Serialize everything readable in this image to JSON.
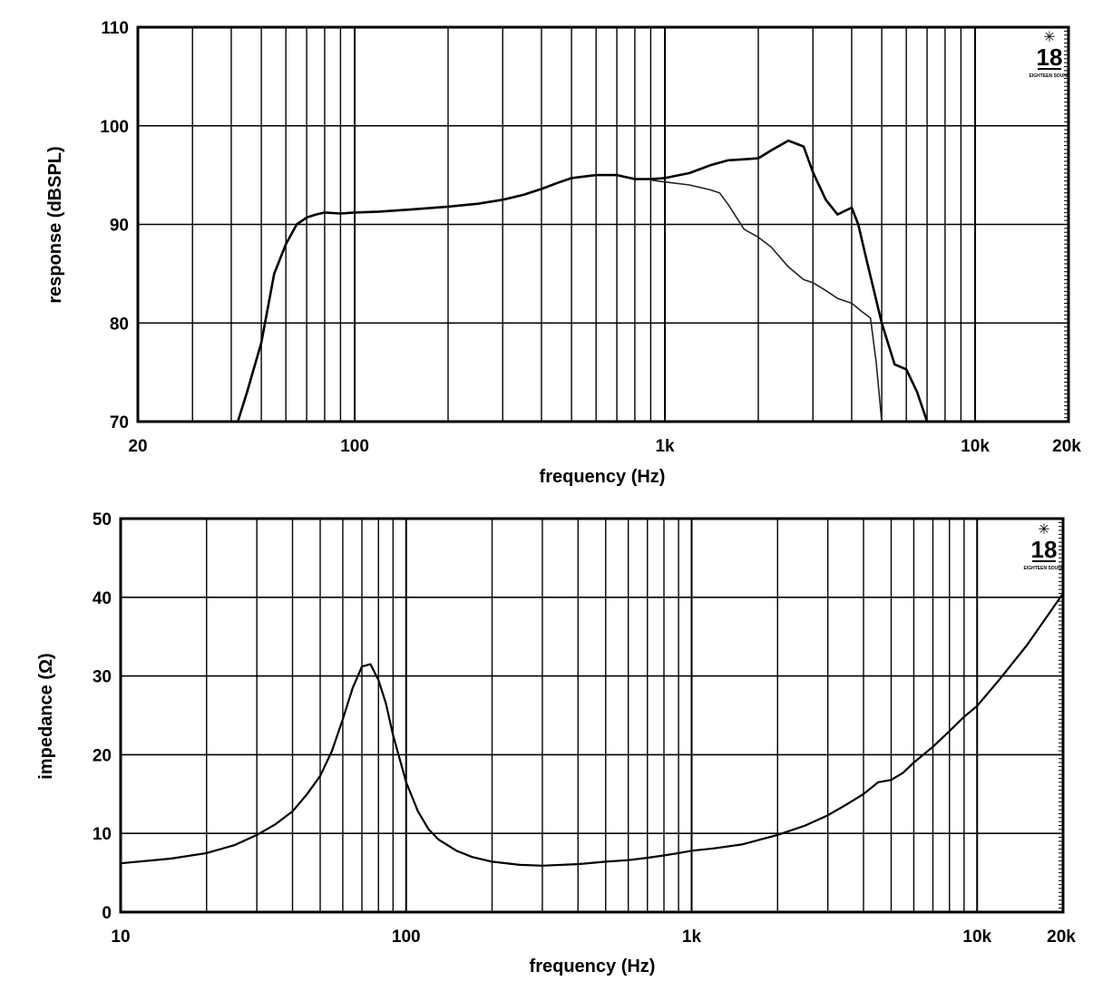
{
  "chart_data": [
    {
      "type": "line",
      "id": "response",
      "xlabel": "frequency (Hz)",
      "ylabel": "response (dBSPL)",
      "xscale": "log",
      "xlim": [
        20,
        20000
      ],
      "ylim": [
        70,
        110
      ],
      "xticks": [
        {
          "value": 20,
          "label": "20"
        },
        {
          "value": 100,
          "label": "100"
        },
        {
          "value": 1000,
          "label": "1k"
        },
        {
          "value": 10000,
          "label": "10k"
        },
        {
          "value": 20000,
          "label": "20k"
        }
      ],
      "yticks": [
        {
          "value": 70,
          "label": "70"
        },
        {
          "value": 80,
          "label": "80"
        },
        {
          "value": 90,
          "label": "90"
        },
        {
          "value": 100,
          "label": "100"
        },
        {
          "value": 110,
          "label": "110"
        }
      ],
      "grid": true,
      "brand": {
        "number": "18",
        "text": "EIGHTEEN SOUND"
      },
      "series": [
        {
          "stroke_width": 2.6,
          "color": "#000000",
          "x": [
            42,
            45,
            50,
            55,
            60,
            65,
            70,
            75,
            80,
            90,
            100,
            120,
            150,
            200,
            250,
            300,
            350,
            400,
            450,
            500,
            600,
            700,
            800,
            900,
            1000,
            1200,
            1400,
            1600,
            1800,
            2000,
            2200,
            2500,
            2800,
            3000,
            3300,
            3600,
            4000,
            4200,
            4500,
            5000,
            5500,
            6000,
            6500,
            7000
          ],
          "y": [
            70,
            73,
            78,
            85,
            88,
            90,
            90.7,
            91,
            91.2,
            91.1,
            91.2,
            91.3,
            91.5,
            91.8,
            92.1,
            92.5,
            93,
            93.6,
            94.2,
            94.7,
            95,
            95,
            94.6,
            94.6,
            94.7,
            95.2,
            96,
            96.5,
            96.6,
            96.7,
            97.5,
            98.5,
            97.9,
            95.3,
            92.5,
            91,
            91.7,
            90,
            86,
            80,
            75.8,
            75.3,
            73,
            70
          ]
        },
        {
          "stroke_width": 1.6,
          "color": "#222222",
          "x": [
            900,
            1000,
            1200,
            1400,
            1500,
            1600,
            1800,
            2000,
            2200,
            2500,
            2800,
            3000,
            3300,
            3600,
            4000,
            4300,
            4600,
            4800,
            5000
          ],
          "y": [
            94.5,
            94.3,
            94,
            93.5,
            93.2,
            92,
            89.5,
            88.7,
            87.7,
            85.7,
            84.4,
            84.1,
            83.3,
            82.5,
            82,
            81.2,
            80.5,
            76,
            70
          ]
        }
      ]
    },
    {
      "type": "line",
      "id": "impedance",
      "xlabel": "frequency (Hz)",
      "ylabel": "impedance (Ω)",
      "xscale": "log",
      "xlim": [
        10,
        20000
      ],
      "ylim": [
        0,
        50
      ],
      "xticks": [
        {
          "value": 10,
          "label": "10"
        },
        {
          "value": 100,
          "label": "100"
        },
        {
          "value": 1000,
          "label": "1k"
        },
        {
          "value": 10000,
          "label": "10k"
        },
        {
          "value": 20000,
          "label": "20k"
        }
      ],
      "yticks": [
        {
          "value": 0,
          "label": "0"
        },
        {
          "value": 10,
          "label": "10"
        },
        {
          "value": 20,
          "label": "20"
        },
        {
          "value": 30,
          "label": "30"
        },
        {
          "value": 40,
          "label": "40"
        },
        {
          "value": 50,
          "label": "50"
        }
      ],
      "grid": true,
      "brand": {
        "number": "18",
        "text": "EIGHTEEN SOUND"
      },
      "series": [
        {
          "stroke_width": 2.2,
          "color": "#000000",
          "x": [
            10,
            15,
            20,
            25,
            30,
            35,
            40,
            45,
            50,
            55,
            60,
            65,
            70,
            75,
            80,
            85,
            90,
            100,
            110,
            120,
            130,
            150,
            170,
            200,
            250,
            300,
            400,
            500,
            600,
            700,
            800,
            900,
            1000,
            1200,
            1500,
            2000,
            2500,
            3000,
            3500,
            4000,
            4500,
            5000,
            5500,
            6000,
            7000,
            8000,
            9000,
            10000,
            12000,
            15000,
            20000
          ],
          "y": [
            6.2,
            6.8,
            7.5,
            8.5,
            9.8,
            11.2,
            12.8,
            15,
            17.3,
            20.5,
            24.5,
            28.5,
            31.2,
            31.5,
            29.5,
            26.5,
            22.5,
            16.5,
            12.8,
            10.5,
            9.2,
            7.8,
            7,
            6.4,
            6,
            5.9,
            6.1,
            6.4,
            6.6,
            6.9,
            7.2,
            7.5,
            7.8,
            8.1,
            8.6,
            9.8,
            11,
            12.3,
            13.7,
            15,
            16.5,
            16.8,
            17.7,
            19,
            21,
            23,
            24.8,
            26.2,
            29.6,
            34,
            40.5
          ]
        }
      ]
    }
  ]
}
